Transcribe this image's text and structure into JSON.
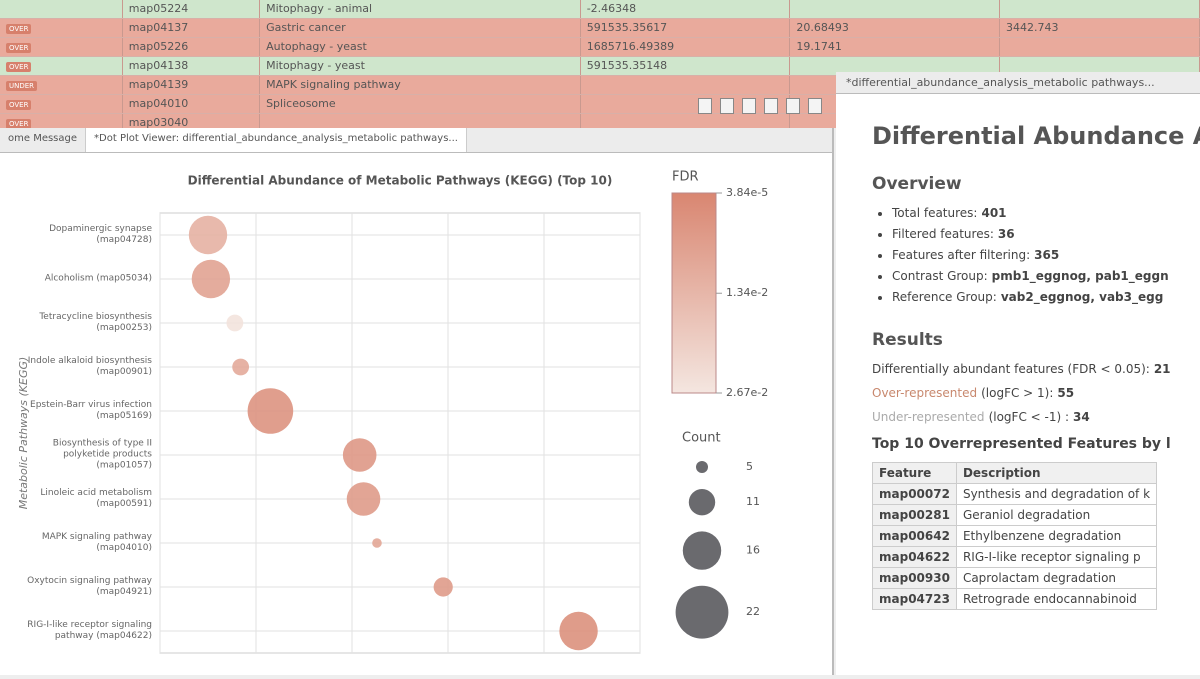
{
  "table": {
    "rows": [
      {
        "badge": "",
        "id": "map05224",
        "desc": "Mitophagy - animal",
        "v1": "-2.46348",
        "v2": "",
        "v3": "",
        "tone": "green"
      },
      {
        "badge": "OVER",
        "id": "map04137",
        "desc": "Gastric cancer",
        "v1": "591535.35617",
        "v2": "20.68493",
        "v3": "3442.743",
        "tone": "red"
      },
      {
        "badge": "OVER",
        "id": "map05226",
        "desc": "Autophagy - yeast",
        "v1": "1685716.49389",
        "v2": "19.1741",
        "v3": "",
        "tone": "red"
      },
      {
        "badge": "OVER",
        "id": "map04138",
        "desc": "Mitophagy - yeast",
        "v1": "591535.35148",
        "v2": "",
        "v3": "",
        "tone": "green"
      },
      {
        "badge": "UNDER",
        "id": "map04139",
        "desc": "MAPK signaling pathway",
        "v1": "",
        "v2": "",
        "v3": "",
        "tone": "red"
      },
      {
        "badge": "OVER",
        "id": "map04010",
        "desc": "Spliceosome",
        "v1": "",
        "v2": "",
        "v3": "",
        "tone": "red"
      },
      {
        "badge": "OVER",
        "id": "map03040",
        "desc": "",
        "v1": "",
        "v2": "",
        "v3": "",
        "tone": "red"
      }
    ]
  },
  "tabs": {
    "left": [
      "ome Message",
      "*Dot Plot Viewer: differential_abundance_analysis_metabolic pathways..."
    ],
    "right": "*differential_abundance_analysis_metabolic pathways..."
  },
  "chart_data": {
    "type": "scatter",
    "title": "Differential Abundance of Metabolic Pathways (KEGG) (Top 10)",
    "ylabel": "Metabolic Pathways (KEGG)",
    "categories": [
      "Dopaminergic synapse (map04728)",
      "Alcoholism (map05034)",
      "Tetracycline biosynthesis (map00253)",
      "Indole alkaloid biosynthesis (map00901)",
      "Epstein-Barr virus infection (map05169)",
      "Biosynthesis of type II polyketide products (map01057)",
      "Linoleic acid metabolism (map00591)",
      "MAPK signaling pathway (map04010)",
      "Oxytocin signaling pathway (map04921)",
      "RIG-I-like receptor signaling pathway (map04622)"
    ],
    "x": [
      0.5,
      0.53,
      0.78,
      0.84,
      1.15,
      2.08,
      2.12,
      2.26,
      2.95,
      4.36
    ],
    "sizes": [
      16,
      16,
      7,
      7,
      19,
      14,
      14,
      4,
      8,
      16
    ],
    "fdr": [
      0.012,
      0.008,
      0.026,
      0.01,
      0.004,
      0.005,
      0.006,
      0.009,
      0.006,
      0.003
    ],
    "xlim": [
      0,
      5
    ],
    "xticks": [
      0,
      1,
      2,
      3,
      4,
      5
    ],
    "grid": true,
    "color_legend": {
      "title": "FDR",
      "lim": [
        3.84e-05,
        0.0267
      ],
      "colors": [
        "#d98671",
        "#f4e6e0"
      ],
      "ticks": [
        {
          "value": 3.84e-05,
          "label": "3.84e-5"
        },
        {
          "value": 0.0134,
          "label": "1.34e-2"
        },
        {
          "value": 0.0267,
          "label": "2.67e-2"
        }
      ]
    },
    "size_legend": {
      "title": "Count",
      "values": [
        5,
        11,
        16,
        22
      ],
      "color": "#6a6a6e"
    }
  },
  "report": {
    "title": "Differential Abundance Ana",
    "overview_title": "Overview",
    "overview": [
      {
        "label": "Total features:",
        "value": "401"
      },
      {
        "label": "Filtered features:",
        "value": "36"
      },
      {
        "label": "Features after filtering:",
        "value": "365"
      },
      {
        "label": "Contrast Group:",
        "value": "pmb1_eggnog, pab1_eggn"
      },
      {
        "label": "Reference Group:",
        "value": "vab2_eggnog, vab3_egg"
      }
    ],
    "results_title": "Results",
    "results": [
      {
        "label": "Differentially abundant features (FDR < 0.05):",
        "value": "21"
      },
      {
        "label": "Over-represented",
        "rest": "(logFC > 1):",
        "value": "55"
      },
      {
        "label": "Under-represented",
        "rest": "(logFC < -1) :",
        "value": "34"
      }
    ],
    "top_title": "Top 10 Overrepresented Features by l",
    "columns": [
      "Feature",
      "Description"
    ],
    "rows": [
      [
        "map00072",
        "Synthesis and degradation of k"
      ],
      [
        "map00281",
        "Geraniol degradation"
      ],
      [
        "map00642",
        "Ethylbenzene degradation"
      ],
      [
        "map04622",
        "RIG-I-like receptor signaling p"
      ],
      [
        "map00930",
        "Caprolactam degradation"
      ],
      [
        "map04723",
        "Retrograde endocannabinoid"
      ]
    ]
  }
}
